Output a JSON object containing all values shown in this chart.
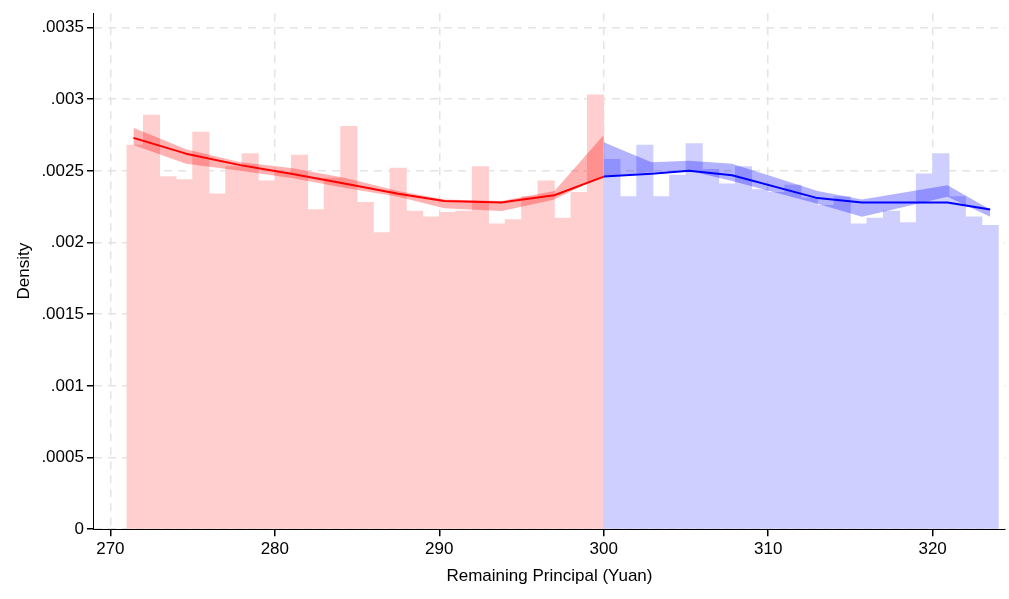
{
  "chart_data": {
    "type": "histogram",
    "xlabel": "Remaining Principal (Yuan)",
    "ylabel": "Density",
    "bins": [
      271,
      272,
      273,
      274,
      275,
      276,
      277,
      278,
      279,
      280,
      281,
      282,
      283,
      284,
      285,
      286,
      287,
      288,
      289,
      290,
      291,
      292,
      293,
      294,
      295,
      296,
      297,
      298,
      299,
      300,
      301,
      302,
      303,
      304,
      305,
      306,
      307,
      308,
      309,
      310,
      311,
      312,
      313,
      314,
      315,
      316,
      317,
      318,
      319,
      320,
      321,
      322,
      323,
      324
    ],
    "values": [
      0.00268,
      0.00289,
      0.00246,
      0.00244,
      0.00277,
      0.00234,
      0.00253,
      0.00262,
      0.00243,
      0.00249,
      0.00261,
      0.00223,
      0.00245,
      0.00281,
      0.00228,
      0.00207,
      0.00252,
      0.00222,
      0.00218,
      0.00221,
      0.00222,
      0.00253,
      0.00213,
      0.00216,
      0.00232,
      0.00243,
      0.00217,
      0.00235,
      0.00303,
      0.00258,
      0.00232,
      0.00268,
      0.00232,
      0.00247,
      0.00269,
      0.00251,
      0.00241,
      0.00253,
      0.00237,
      0.00235,
      0.0024,
      0.00231,
      0.00226,
      0.00232,
      0.00213,
      0.00217,
      0.00222,
      0.00214,
      0.00248,
      0.00262,
      0.00232,
      0.00218,
      0.00212
    ],
    "colors": [
      "#ffcfcf",
      "#ffcfcf",
      "#ffcfcf",
      "#ffcfcf",
      "#ffcfcf",
      "#ffcfcf",
      "#ffcfcf",
      "#ffcfcf",
      "#ffcfcf",
      "#ffcfcf",
      "#ffcfcf",
      "#ffcfcf",
      "#ffcfcf",
      "#ffcfcf",
      "#ffcfcf",
      "#ffcfcf",
      "#ffcfcf",
      "#ffcfcf",
      "#ffcfcf",
      "#ffcfcf",
      "#ffcfcf",
      "#ffcfcf",
      "#ffcfcf",
      "#ffcfcf",
      "#ffcfcf",
      "#ffcfcf",
      "#ffcfcf",
      "#ffcfcf",
      "#ffcfcf",
      "#cfcfff",
      "#cfcfff",
      "#cfcfff",
      "#cfcfff",
      "#cfcfff",
      "#cfcfff",
      "#cfcfff",
      "#cfcfff",
      "#cfcfff",
      "#cfcfff",
      "#cfcfff",
      "#cfcfff",
      "#cfcfff",
      "#cfcfff",
      "#cfcfff",
      "#cfcfff",
      "#cfcfff",
      "#cfcfff",
      "#cfcfff",
      "#cfcfff",
      "#cfcfff",
      "#cfcfff",
      "#cfcfff",
      "#cfcfff"
    ],
    "series": [
      {
        "type": "line",
        "color": "#ff0000",
        "x": [
          271.4,
          274.6,
          277.9,
          281,
          284.3,
          287.5,
          290.3,
          293.8,
          297,
          300
        ],
        "values": [
          0.00273,
          0.00262,
          0.00254,
          0.00248,
          0.00241,
          0.00234,
          0.00229,
          0.00228,
          0.00233,
          0.00246
        ],
        "lower": [
          0.00268,
          0.00255,
          0.0025,
          0.00245,
          0.00238,
          0.00232,
          0.00224,
          0.00222,
          0.0023,
          0.00247
        ],
        "upper": [
          0.0028,
          0.00265,
          0.00256,
          0.00252,
          0.00245,
          0.00236,
          0.0023,
          0.00229,
          0.00236,
          0.00275
        ]
      },
      {
        "type": "line",
        "color": "#0000ff",
        "x": [
          300,
          302.9,
          305.2,
          307.8,
          313,
          315.7,
          320.9,
          323.5
        ],
        "values": [
          0.00246,
          0.00248,
          0.0025,
          0.00247,
          0.00231,
          0.00228,
          0.00228,
          0.00223
        ],
        "lower": [
          0.00246,
          0.00249,
          0.0025,
          0.00243,
          0.00227,
          0.00218,
          0.00232,
          0.00218
        ],
        "upper": [
          0.0027,
          0.00256,
          0.00257,
          0.00255,
          0.00236,
          0.0023,
          0.0024,
          0.00223
        ]
      }
    ],
    "xlim": [
      269,
      324.4
    ],
    "xticks": [
      270,
      280,
      290,
      300,
      310,
      320
    ],
    "ylim": [
      0,
      0.0036
    ],
    "yticks": [
      0,
      {
        "value": 0.0005,
        "label": ".0005"
      },
      {
        "value": 0.001,
        "label": ".001"
      },
      {
        "value": 0.0015,
        "label": ".0015"
      },
      {
        "value": 0.002,
        "label": ".002"
      },
      {
        "value": 0.0025,
        "label": ".0025"
      },
      {
        "value": 0.003,
        "label": ".003"
      },
      {
        "value": 0.0035,
        "label": ".0035"
      }
    ],
    "grid": true,
    "legend": false
  }
}
